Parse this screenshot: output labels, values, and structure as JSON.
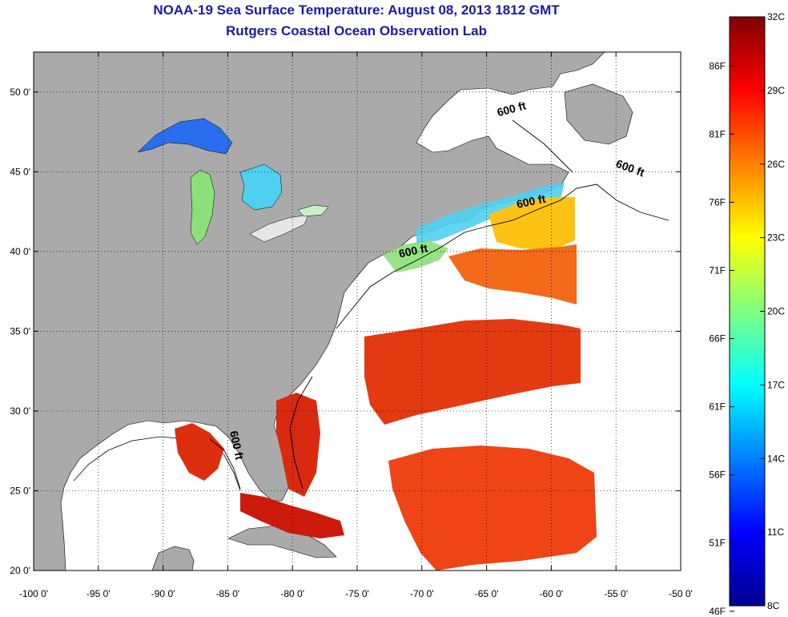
{
  "title": "NOAA-19 Sea Surface Temperature:  August 08, 2013 1812 GMT",
  "subtitle": "Rutgers Coastal Ocean Observation Lab",
  "map": {
    "lon_range": [
      -100,
      -50
    ],
    "lat_range": [
      20,
      52.5
    ],
    "grid": true,
    "x_tick_labels": [
      "-100 0'",
      "-95 0'",
      "-90 0'",
      "-85 0'",
      "-80 0'",
      "-75 0'",
      "-70 0'",
      "-65 0'",
      "-60 0'",
      "-55 0'",
      "-50 0'"
    ],
    "x_tick_values": [
      -100,
      -95,
      -90,
      -85,
      -80,
      -75,
      -70,
      -65,
      -60,
      -55,
      -50
    ],
    "y_tick_labels": [
      "50 0'",
      "45 0'",
      "40 0'",
      "35 0'",
      "30 0'",
      "25 0'",
      "20 0'"
    ],
    "y_tick_values": [
      50,
      45,
      40,
      35,
      30,
      25,
      20
    ],
    "land_color": "#aaaaaa",
    "no_data_color": "#ffffff",
    "contour_labels": [
      {
        "text": "600 ft",
        "lon": -63.0,
        "lat": 48.7,
        "angle": -15
      },
      {
        "text": "600 ft",
        "lon": -54.0,
        "lat": 45.0,
        "angle": 20
      },
      {
        "text": "600 ft",
        "lon": -61.5,
        "lat": 42.9,
        "angle": -12
      },
      {
        "text": "600 ft",
        "lon": -70.6,
        "lat": 39.8,
        "angle": -12
      },
      {
        "text": "600 ft",
        "lon": -84.6,
        "lat": 27.8,
        "angle": 78
      }
    ]
  },
  "colorbar": {
    "range_c": [
      8,
      32
    ],
    "celsius_labels": [
      "32C",
      "29C",
      "26C",
      "23C",
      "20C",
      "17C",
      "14C",
      "11C",
      "8C"
    ],
    "celsius_values": [
      32,
      29,
      26,
      23,
      20,
      17,
      14,
      11,
      8
    ],
    "fahrenheit_labels": [
      "86F",
      "81F",
      "76F",
      "71F",
      "66F",
      "61F",
      "56F",
      "51F",
      "46F"
    ],
    "fahrenheit_values": [
      86,
      81,
      76,
      71,
      66,
      61,
      56,
      51,
      46
    ],
    "color_stops": [
      "#00008f",
      "#0000ff",
      "#0080ff",
      "#00ffff",
      "#80ff80",
      "#ffff00",
      "#ff8000",
      "#ff0000",
      "#800000"
    ]
  }
}
